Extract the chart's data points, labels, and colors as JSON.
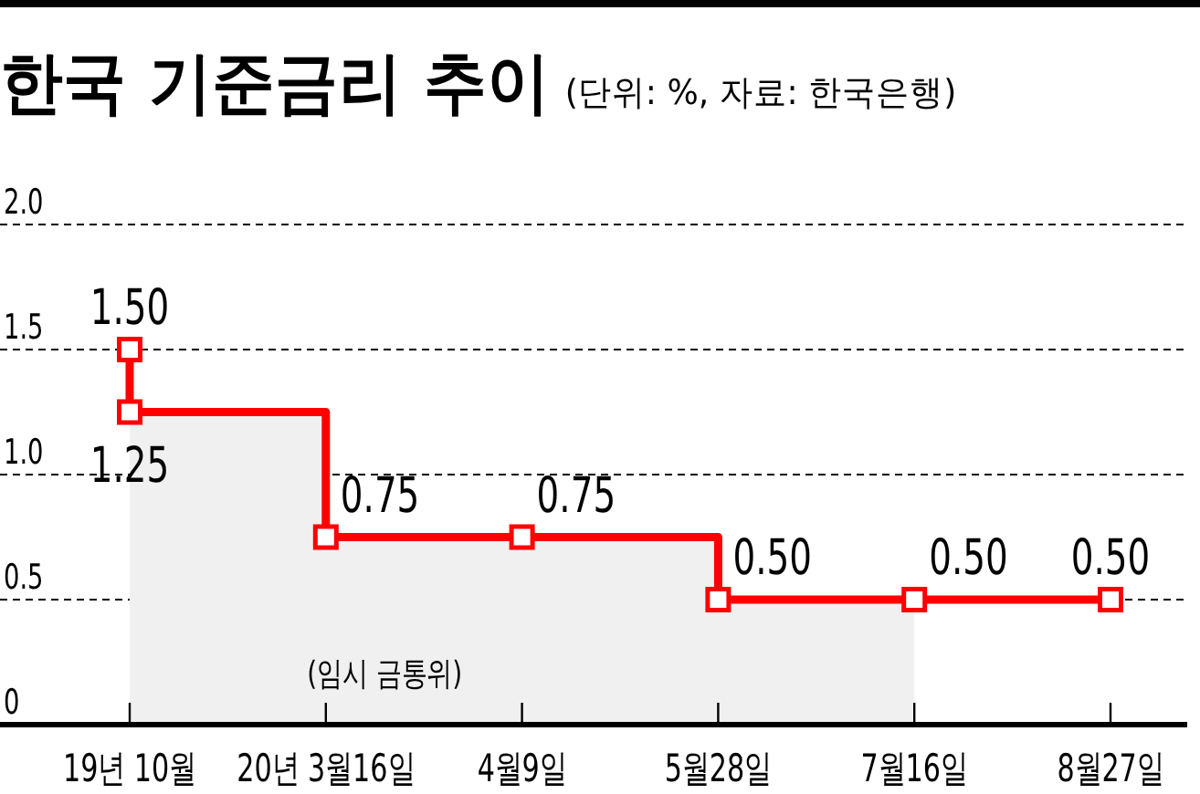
{
  "chart_data": {
    "type": "step",
    "title": "한국 기준금리 추이",
    "subtitle": "(단위: %, 자료: 한국은행)",
    "categories": [
      "19년 10월",
      "20년 3월16일",
      "4월9일",
      "5월28일",
      "7월16일",
      "8월27일"
    ],
    "series": [
      {
        "type": "area",
        "color": "#f0f0f0",
        "values": [
          1.25,
          0.75,
          0.75,
          0.5,
          0.5,
          null
        ]
      },
      {
        "color": "#ff0000",
        "marker": "square",
        "line_style": "solid",
        "x": [
          "19년 10월",
          "19년 10월",
          "20년 3월16일",
          "4월9일",
          "5월28일",
          "7월16일",
          "8월27일"
        ],
        "values": [
          1.5,
          1.25,
          0.75,
          0.75,
          0.5,
          0.5,
          0.5
        ],
        "value_labels": [
          "1.50",
          "1.25",
          "0.75",
          "0.75",
          "0.50",
          "0.50",
          "0.50"
        ]
      }
    ],
    "ylim": [
      0,
      2
    ],
    "yticks": [
      0,
      0.5,
      {
        "value": 1,
        "label": "1.0"
      },
      1.5,
      {
        "value": 2,
        "label": "2.0"
      }
    ],
    "grid": "y",
    "annotations": [
      "(임시 금통위)"
    ]
  }
}
